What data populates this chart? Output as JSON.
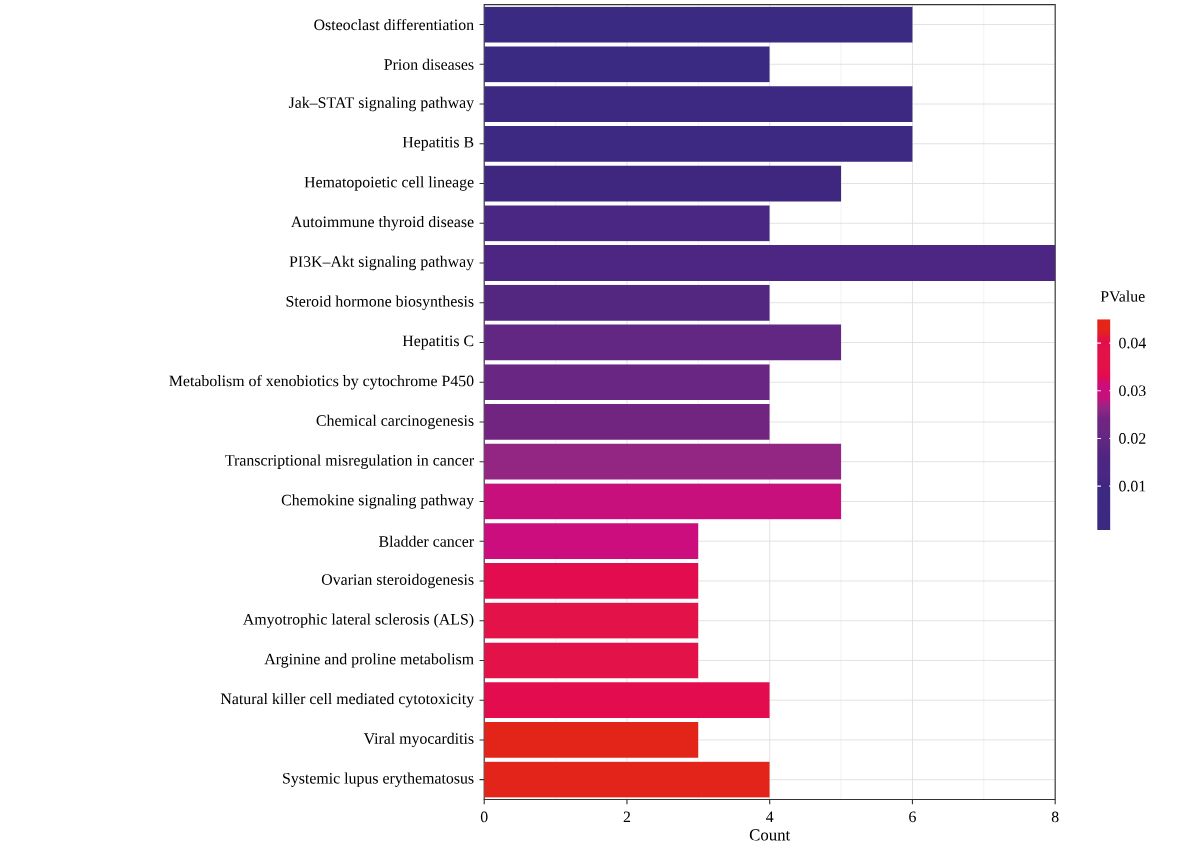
{
  "chart_data": {
    "type": "bar",
    "orientation": "horizontal",
    "xlabel": "Count",
    "clabel": "PValue",
    "categories": [
      "Osteoclast differentiation",
      "Prion diseases",
      "Jak–STAT signaling pathway",
      "Hepatitis B",
      "Hematopoietic cell lineage",
      "Autoimmune thyroid disease",
      "PI3K–Akt signaling pathway",
      "Steroid hormone biosynthesis",
      "Hepatitis C",
      "Metabolism of xenobiotics by cytochrome P450",
      "Chemical carcinogenesis",
      "Transcriptional misregulation in cancer",
      "Chemokine signaling pathway",
      "Bladder cancer",
      "Ovarian steroidogenesis",
      "Amyotrophic lateral sclerosis (ALS)",
      "Arginine and proline metabolism",
      "Natural killer cell mediated cytotoxicity",
      "Viral myocarditis",
      "Systemic lupus erythematosus"
    ],
    "values": [
      6,
      4,
      6,
      6,
      5,
      4,
      8,
      4,
      5,
      4,
      4,
      5,
      5,
      3,
      3,
      3,
      3,
      4,
      3,
      4
    ],
    "colors": [
      "#3b2a82",
      "#3b2a82",
      "#3e2982",
      "#3e2982",
      "#3f2780",
      "#4a2783",
      "#4d2582",
      "#532680",
      "#612782",
      "#692783",
      "#722580",
      "#932683",
      "#c8107d",
      "#cc0d7d",
      "#e30c4e",
      "#e31349",
      "#e31349",
      "#e30c4e",
      "#e32519",
      "#e3241b"
    ],
    "xlim": [
      0,
      8
    ],
    "xticks": [
      0,
      2,
      4,
      6,
      8
    ],
    "grid": true,
    "clim": [
      0.0008,
      0.045
    ],
    "cticks": [
      0.01,
      0.02,
      0.03,
      0.04
    ]
  }
}
